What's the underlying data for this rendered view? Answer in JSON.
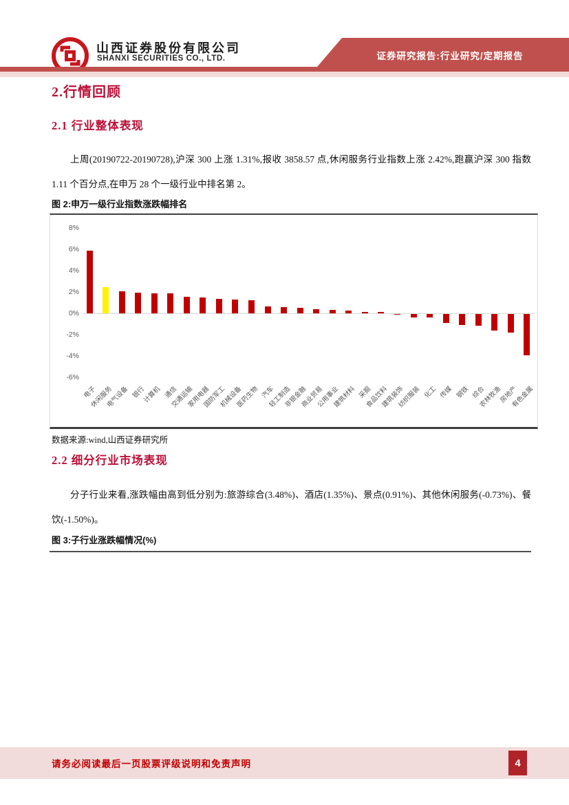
{
  "header": {
    "company_cn": "山西证券股份有限公司",
    "company_en": "SHANXI SECURITIES CO., LTD.",
    "banner": "证券研究报告:行业研究/定期报告"
  },
  "sections": {
    "h1": "2.行情回顾",
    "h2_1": "2.1 行业整体表现",
    "para1": "上周(20190722-20190728),沪深 300 上涨 1.31%,报收 3858.57 点,休闲服务行业指数上涨 2.42%,跑赢沪深 300 指数 1.11 个百分点,在申万 28 个一级行业中排名第 2。",
    "fig2_caption": "图 2:申万一级行业指数涨跌幅排名",
    "source": "数据来源:wind,山西证券研究所",
    "h2_2": "2.2 细分行业市场表现",
    "para2": "分子行业来看,涨跌幅由高到低分别为:旅游综合(3.48%)、酒店(1.35%)、景点(0.91%)、其他休闲服务(-0.73%)、餐饮(-1.50%)。",
    "fig3_caption": "图 3:子行业涨跌幅情况(%)"
  },
  "chart_data": {
    "type": "bar",
    "title": "申万一级行业指数涨跌幅排名",
    "categories": [
      "电子",
      "休闲服务",
      "电气设备",
      "银行",
      "计算机",
      "通信",
      "交通运输",
      "家用电器",
      "国防军工",
      "机械设备",
      "医药生物",
      "汽车",
      "轻工制造",
      "非银金融",
      "商业贸易",
      "公用事业",
      "建筑材料",
      "采掘",
      "食品饮料",
      "建筑装饰",
      "纺织服装",
      "化工",
      "传媒",
      "钢铁",
      "综合",
      "农林牧渔",
      "房地产",
      "有色金属"
    ],
    "values": [
      5.9,
      2.42,
      2.05,
      1.95,
      1.9,
      1.85,
      1.55,
      1.5,
      1.35,
      1.3,
      1.25,
      0.65,
      0.6,
      0.5,
      0.38,
      0.32,
      0.27,
      0.15,
      0.1,
      -0.05,
      -0.3,
      -0.35,
      -0.85,
      -1.0,
      -1.1,
      -1.55,
      -1.75,
      -3.85
    ],
    "highlight_index": 1,
    "bar_color": "#C00000",
    "highlight_color": "#FFF200",
    "ytick_values": [
      8,
      6,
      4,
      2,
      0,
      -2,
      -4,
      -6
    ],
    "ytick_labels": [
      "8%",
      "6%",
      "4%",
      "2%",
      "0%",
      "-2%",
      "-4%",
      "-6%"
    ],
    "ylim": [
      -6,
      8
    ],
    "xlabel": "",
    "ylabel": "",
    "grid": false,
    "legend": "none"
  },
  "footer": {
    "disclaimer": "请务必阅读最后一页股票评级说明和免责声明",
    "page_number": "4"
  },
  "colors": {
    "banner_red": "#C0504D",
    "pink_band": "#F2DCDB",
    "heading_red": "#BC1038",
    "logo_red": "#C8161D",
    "footer_text_red": "#C00000",
    "page_badge_red": "#B02328",
    "bar_red": "#C00000",
    "bar_yellow": "#FFF200"
  }
}
